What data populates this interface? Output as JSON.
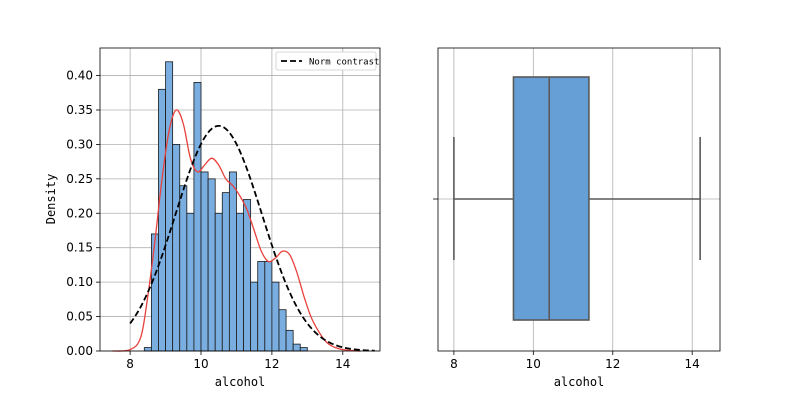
{
  "chart_data": [
    {
      "type": "histogram",
      "title": "",
      "xlabel": "alcohol",
      "ylabel": "Density",
      "xlim": [
        7.15,
        15.05
      ],
      "ylim": [
        0,
        0.44
      ],
      "xticks": [
        "8",
        "10",
        "12",
        "14"
      ],
      "yticks": [
        "0.00",
        "0.05",
        "0.10",
        "0.15",
        "0.20",
        "0.25",
        "0.30",
        "0.35",
        "0.40"
      ],
      "grid": true,
      "bins": {
        "start": 8.4,
        "width": 0.2,
        "values": [
          0.005,
          0.17,
          0.38,
          0.42,
          0.3,
          0.24,
          0.2,
          0.39,
          0.26,
          0.25,
          0.2,
          0.23,
          0.26,
          0.2,
          0.22,
          0.1,
          0.13,
          0.13,
          0.1,
          0.06,
          0.03,
          0.01,
          0.005
        ]
      },
      "bar_color": "#7aaee0",
      "kde": {
        "color": "#e8413c",
        "x": [
          7.5,
          8.0,
          8.3,
          8.5,
          8.7,
          8.9,
          9.1,
          9.3,
          9.5,
          9.7,
          9.9,
          10.1,
          10.3,
          10.5,
          10.7,
          10.9,
          11.1,
          11.3,
          11.5,
          11.7,
          11.9,
          12.1,
          12.3,
          12.5,
          12.7,
          12.9,
          13.1,
          13.3,
          13.5,
          13.7,
          14.0,
          14.5
        ],
        "y": [
          0.0,
          0.002,
          0.02,
          0.08,
          0.16,
          0.25,
          0.32,
          0.35,
          0.33,
          0.28,
          0.26,
          0.27,
          0.28,
          0.27,
          0.25,
          0.24,
          0.225,
          0.205,
          0.175,
          0.145,
          0.13,
          0.135,
          0.145,
          0.14,
          0.115,
          0.08,
          0.05,
          0.03,
          0.015,
          0.007,
          0.002,
          0.0
        ]
      },
      "legend": {
        "label": "Norm contrast",
        "location": "top-right",
        "color": "#000000",
        "style": "dashed"
      },
      "normal_curve": {
        "mean": 10.5,
        "std": 1.22,
        "x_range": [
          8.0,
          14.9
        ]
      }
    },
    {
      "type": "boxplot",
      "title": "",
      "xlabel": "alcohol",
      "xlim": [
        7.6,
        14.7
      ],
      "xticks": [
        "8",
        "10",
        "12",
        "14"
      ],
      "grid": true,
      "whisker_low": 8.0,
      "q1": 9.5,
      "median": 10.4,
      "q3": 11.4,
      "whisker_high": 14.2,
      "box_color": "#659fd5"
    }
  ]
}
